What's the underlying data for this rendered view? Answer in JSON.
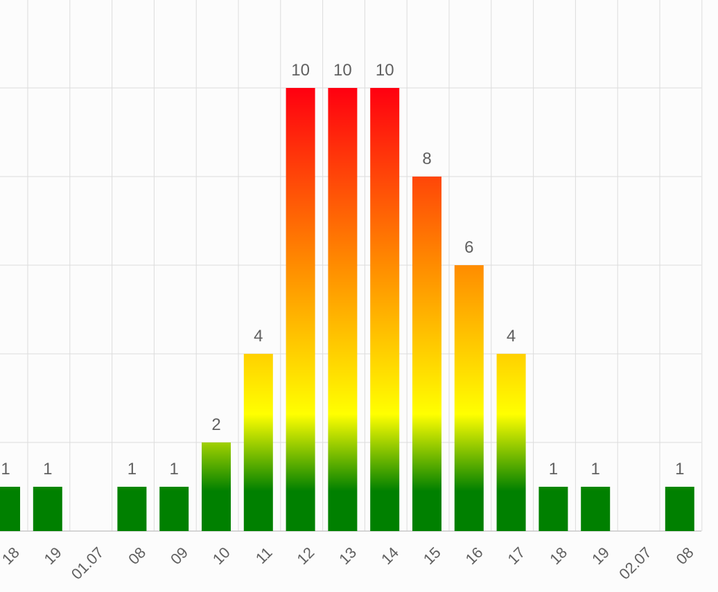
{
  "chart_data": {
    "type": "bar",
    "categories": [
      "18",
      "19",
      "01.07",
      "08",
      "09",
      "10",
      "11",
      "12",
      "13",
      "14",
      "15",
      "16",
      "17",
      "18",
      "19",
      "02.07",
      "08"
    ],
    "values": [
      1,
      1,
      0,
      1,
      1,
      2,
      4,
      10,
      10,
      10,
      8,
      6,
      4,
      1,
      1,
      0,
      1
    ],
    "data_labels": [
      "1",
      "1",
      "",
      "1",
      "1",
      "2",
      "4",
      "10",
      "10",
      "10",
      "8",
      "6",
      "4",
      "1",
      "1",
      "",
      "1"
    ],
    "ylim": [
      0,
      12
    ],
    "grid": true,
    "colors": {
      "low": "#008000",
      "mid": "#ffff00",
      "high_mid": "#ff8c00",
      "high": "#ff0010",
      "grid": "#dcdcdc",
      "axis": "#c8c8c8",
      "text": "#606060"
    }
  }
}
